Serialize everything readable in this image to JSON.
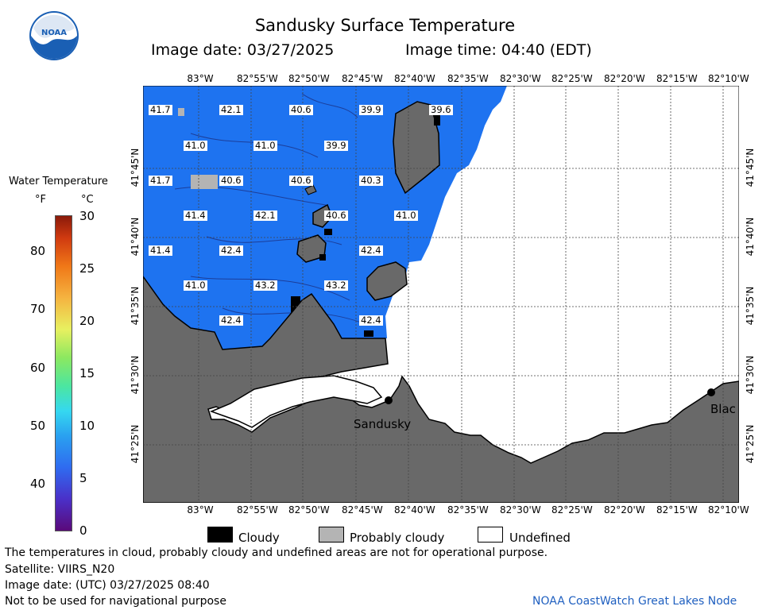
{
  "header": {
    "title": "Sandusky Surface Temperature",
    "image_date": "Image date: 03/27/2025",
    "image_time": "Image time: 04:40 (EDT)"
  },
  "logo": {
    "text": "NOAA"
  },
  "colorbar": {
    "title": "Water Temperature",
    "unit_f": "°F",
    "unit_c": "°C",
    "f_ticks": [
      "80",
      "70",
      "60",
      "50",
      "40"
    ],
    "c_ticks": [
      "30",
      "25",
      "20",
      "15",
      "10",
      "5",
      "0"
    ],
    "range_c": [
      0,
      30
    ],
    "range_f": [
      32,
      86
    ]
  },
  "map": {
    "lon_labels": [
      "83°W",
      "82°55'W",
      "82°50'W",
      "82°45'W",
      "82°40'W",
      "82°35'W",
      "82°30'W",
      "82°25'W",
      "82°20'W",
      "82°15'W",
      "82°10'W"
    ],
    "lat_labels": [
      "41°45'N",
      "41°40'N",
      "41°35'N",
      "41°30'N",
      "41°25'N"
    ],
    "temperature_labels": [
      "41.7",
      "42.1",
      "40.6",
      "39.9",
      "39.6",
      "41.0",
      "41.0",
      "39.9",
      "41.7",
      "40.6",
      "40.6",
      "40.3",
      "41.4",
      "42.1",
      "40.6",
      "41.0",
      "41.4",
      "42.4",
      "42.4",
      "41.0",
      "43.2",
      "43.2",
      "42.4",
      "42.4"
    ],
    "places": [
      "Sandusky",
      "Blac"
    ],
    "colors": {
      "water": "#1e73f0",
      "land": "#696969",
      "cloudy": "#000000",
      "probably_cloudy": "#b4b4b4",
      "undefined": "#ffffff"
    }
  },
  "legend": {
    "cloudy": "Cloudy",
    "probably_cloudy": "Probably cloudy",
    "undefined": "Undefined"
  },
  "footer": {
    "disclaimer": "The temperatures in cloud, probably cloudy and undefined areas are not for operational purpose.",
    "satellite": "Satellite: VIIRS_N20",
    "utc_date": "Image date: (UTC) 03/27/2025  08:40",
    "nav": "Not to be used for navigational purpose",
    "credit": "NOAA CoastWatch Great Lakes Node"
  }
}
